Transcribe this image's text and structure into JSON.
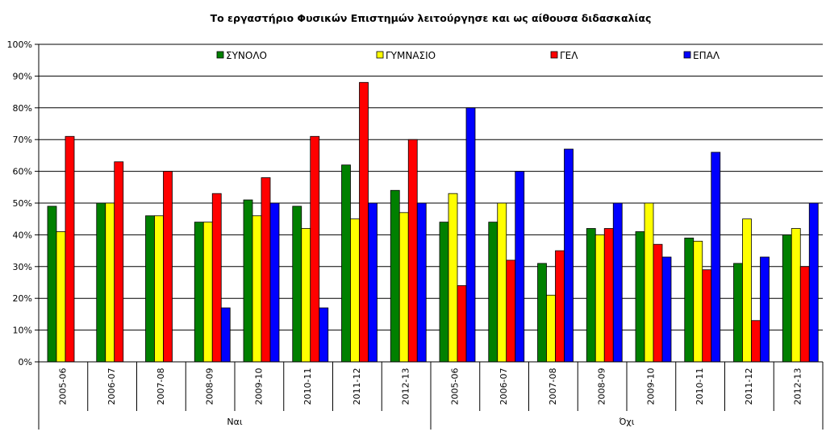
{
  "chart_data": {
    "type": "bar",
    "title": "Το εργαστήριο Φυσικών Επιστημών λειτούργησε και ως αίθουσα διδασκαλίας",
    "xlabel": "",
    "ylabel": "",
    "ylim": [
      0,
      100
    ],
    "yticks": [
      "0%",
      "10%",
      "20%",
      "30%",
      "40%",
      "50%",
      "60%",
      "70%",
      "80%",
      "90%",
      "100%"
    ],
    "grid": true,
    "legend_position": "top",
    "groups": [
      {
        "label": "Ναι",
        "categories": [
          "2005-06",
          "2006-07",
          "2007-08",
          "2008-09",
          "2009-10",
          "2010-11",
          "2011-12",
          "2012-13"
        ]
      },
      {
        "label": "Όχι",
        "categories": [
          "2005-06",
          "2006-07",
          "2007-08",
          "2008-09",
          "2009-10",
          "2010-11",
          "2011-12",
          "2012-13"
        ]
      }
    ],
    "series": [
      {
        "name": "ΣΥΝΟΛΟ",
        "color": "#008000",
        "values": [
          49,
          50,
          46,
          44,
          51,
          49,
          62,
          54,
          44,
          44,
          31,
          42,
          41,
          39,
          31,
          40
        ]
      },
      {
        "name": "ΓΥΜΝΑΣΙΟ",
        "color": "#ffff00",
        "values": [
          41,
          50,
          46,
          44,
          46,
          42,
          45,
          47,
          53,
          50,
          21,
          40,
          50,
          38,
          45,
          42
        ]
      },
      {
        "name": "ΓΕΛ",
        "color": "#ff0000",
        "values": [
          71,
          63,
          60,
          53,
          58,
          71,
          88,
          70,
          24,
          32,
          35,
          42,
          37,
          29,
          13,
          30
        ]
      },
      {
        "name": "ΕΠΑΛ",
        "color": "#0000ff",
        "values": [
          0,
          0,
          0,
          17,
          50,
          17,
          50,
          50,
          80,
          60,
          67,
          50,
          33,
          66,
          33,
          50
        ]
      }
    ]
  }
}
